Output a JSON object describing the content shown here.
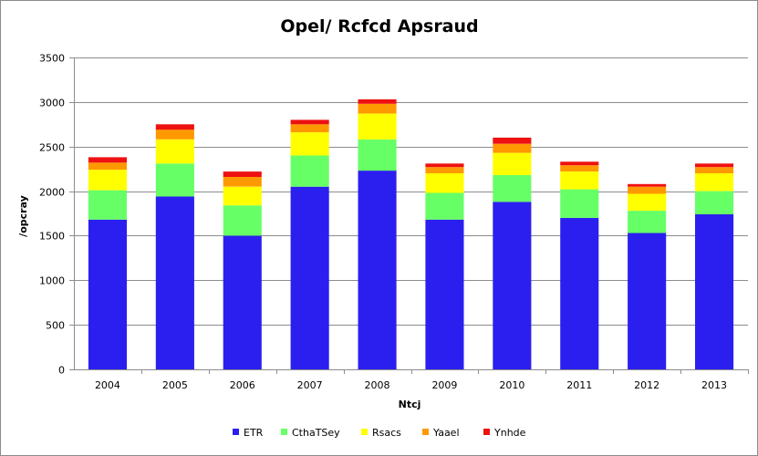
{
  "chart_data": {
    "type": "bar",
    "stacked": true,
    "title": "Opel/ Rcfcd Apsraud",
    "xlabel": "Ntcj",
    "ylabel": "/opcray",
    "ylim": [
      0,
      3500
    ],
    "yticks": [
      0,
      500,
      1000,
      1500,
      2000,
      2500,
      3000,
      3500
    ],
    "grid": true,
    "legend_position": "bottom",
    "categories": [
      "2004",
      "2005",
      "2006",
      "2007",
      "2008",
      "2009",
      "2010",
      "2011",
      "2012",
      "2013"
    ],
    "series": [
      {
        "name": "ETR",
        "color": "#2b1ff0",
        "values": [
          1680,
          1940,
          1500,
          2050,
          2230,
          1680,
          1880,
          1700,
          1530,
          1740
        ]
      },
      {
        "name": "CthaTSey",
        "color": "#66ff66",
        "values": [
          330,
          370,
          340,
          350,
          350,
          300,
          300,
          320,
          250,
          260
        ]
      },
      {
        "name": "Rsacs",
        "color": "#ffff00",
        "values": [
          230,
          270,
          210,
          260,
          290,
          220,
          250,
          200,
          190,
          200
        ]
      },
      {
        "name": "Yaael",
        "color": "#ff9900",
        "values": [
          80,
          110,
          110,
          90,
          110,
          70,
          100,
          70,
          80,
          70
        ]
      },
      {
        "name": "Ynhde",
        "color": "#ee1111",
        "values": [
          60,
          60,
          60,
          50,
          50,
          40,
          70,
          40,
          30,
          40
        ]
      }
    ]
  }
}
